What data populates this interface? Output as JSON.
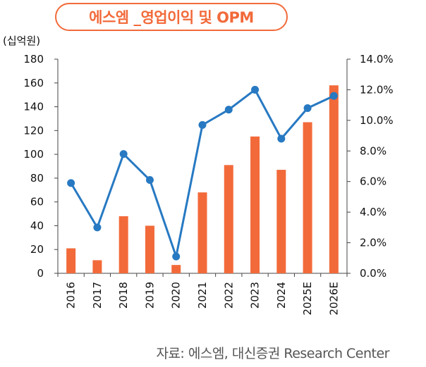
{
  "chart_data": {
    "type": "bar+line",
    "title": "에스엠 _영업이익 및 OPM",
    "unit_label": "(십억원)",
    "categories": [
      "2016",
      "2017",
      "2018",
      "2019",
      "2020",
      "2021",
      "2022",
      "2023",
      "2024",
      "2025E",
      "2026E"
    ],
    "series": [
      {
        "name": "영업이익",
        "type": "bar",
        "axis": "left",
        "color": "#f26a3a",
        "values": [
          21,
          11,
          48,
          40,
          7,
          68,
          91,
          115,
          87,
          127,
          158
        ]
      },
      {
        "name": "OPM",
        "type": "line",
        "axis": "right",
        "color": "#2779c2",
        "values": [
          5.9,
          3.0,
          7.8,
          6.1,
          1.1,
          9.7,
          10.7,
          12.0,
          8.8,
          10.8,
          11.6
        ]
      }
    ],
    "y_left": {
      "range": [
        0,
        180
      ],
      "ticks": [
        "0",
        "20",
        "40",
        "60",
        "80",
        "100",
        "120",
        "140",
        "160",
        "180"
      ]
    },
    "y_right": {
      "range": [
        0,
        14
      ],
      "ticks": [
        "0.0%",
        "2.0%",
        "4.0%",
        "6.0%",
        "8.0%",
        "10.0%",
        "12.0%",
        "14.0%"
      ]
    },
    "source": "자료: 에스엠, 대신증권 Research Center"
  }
}
